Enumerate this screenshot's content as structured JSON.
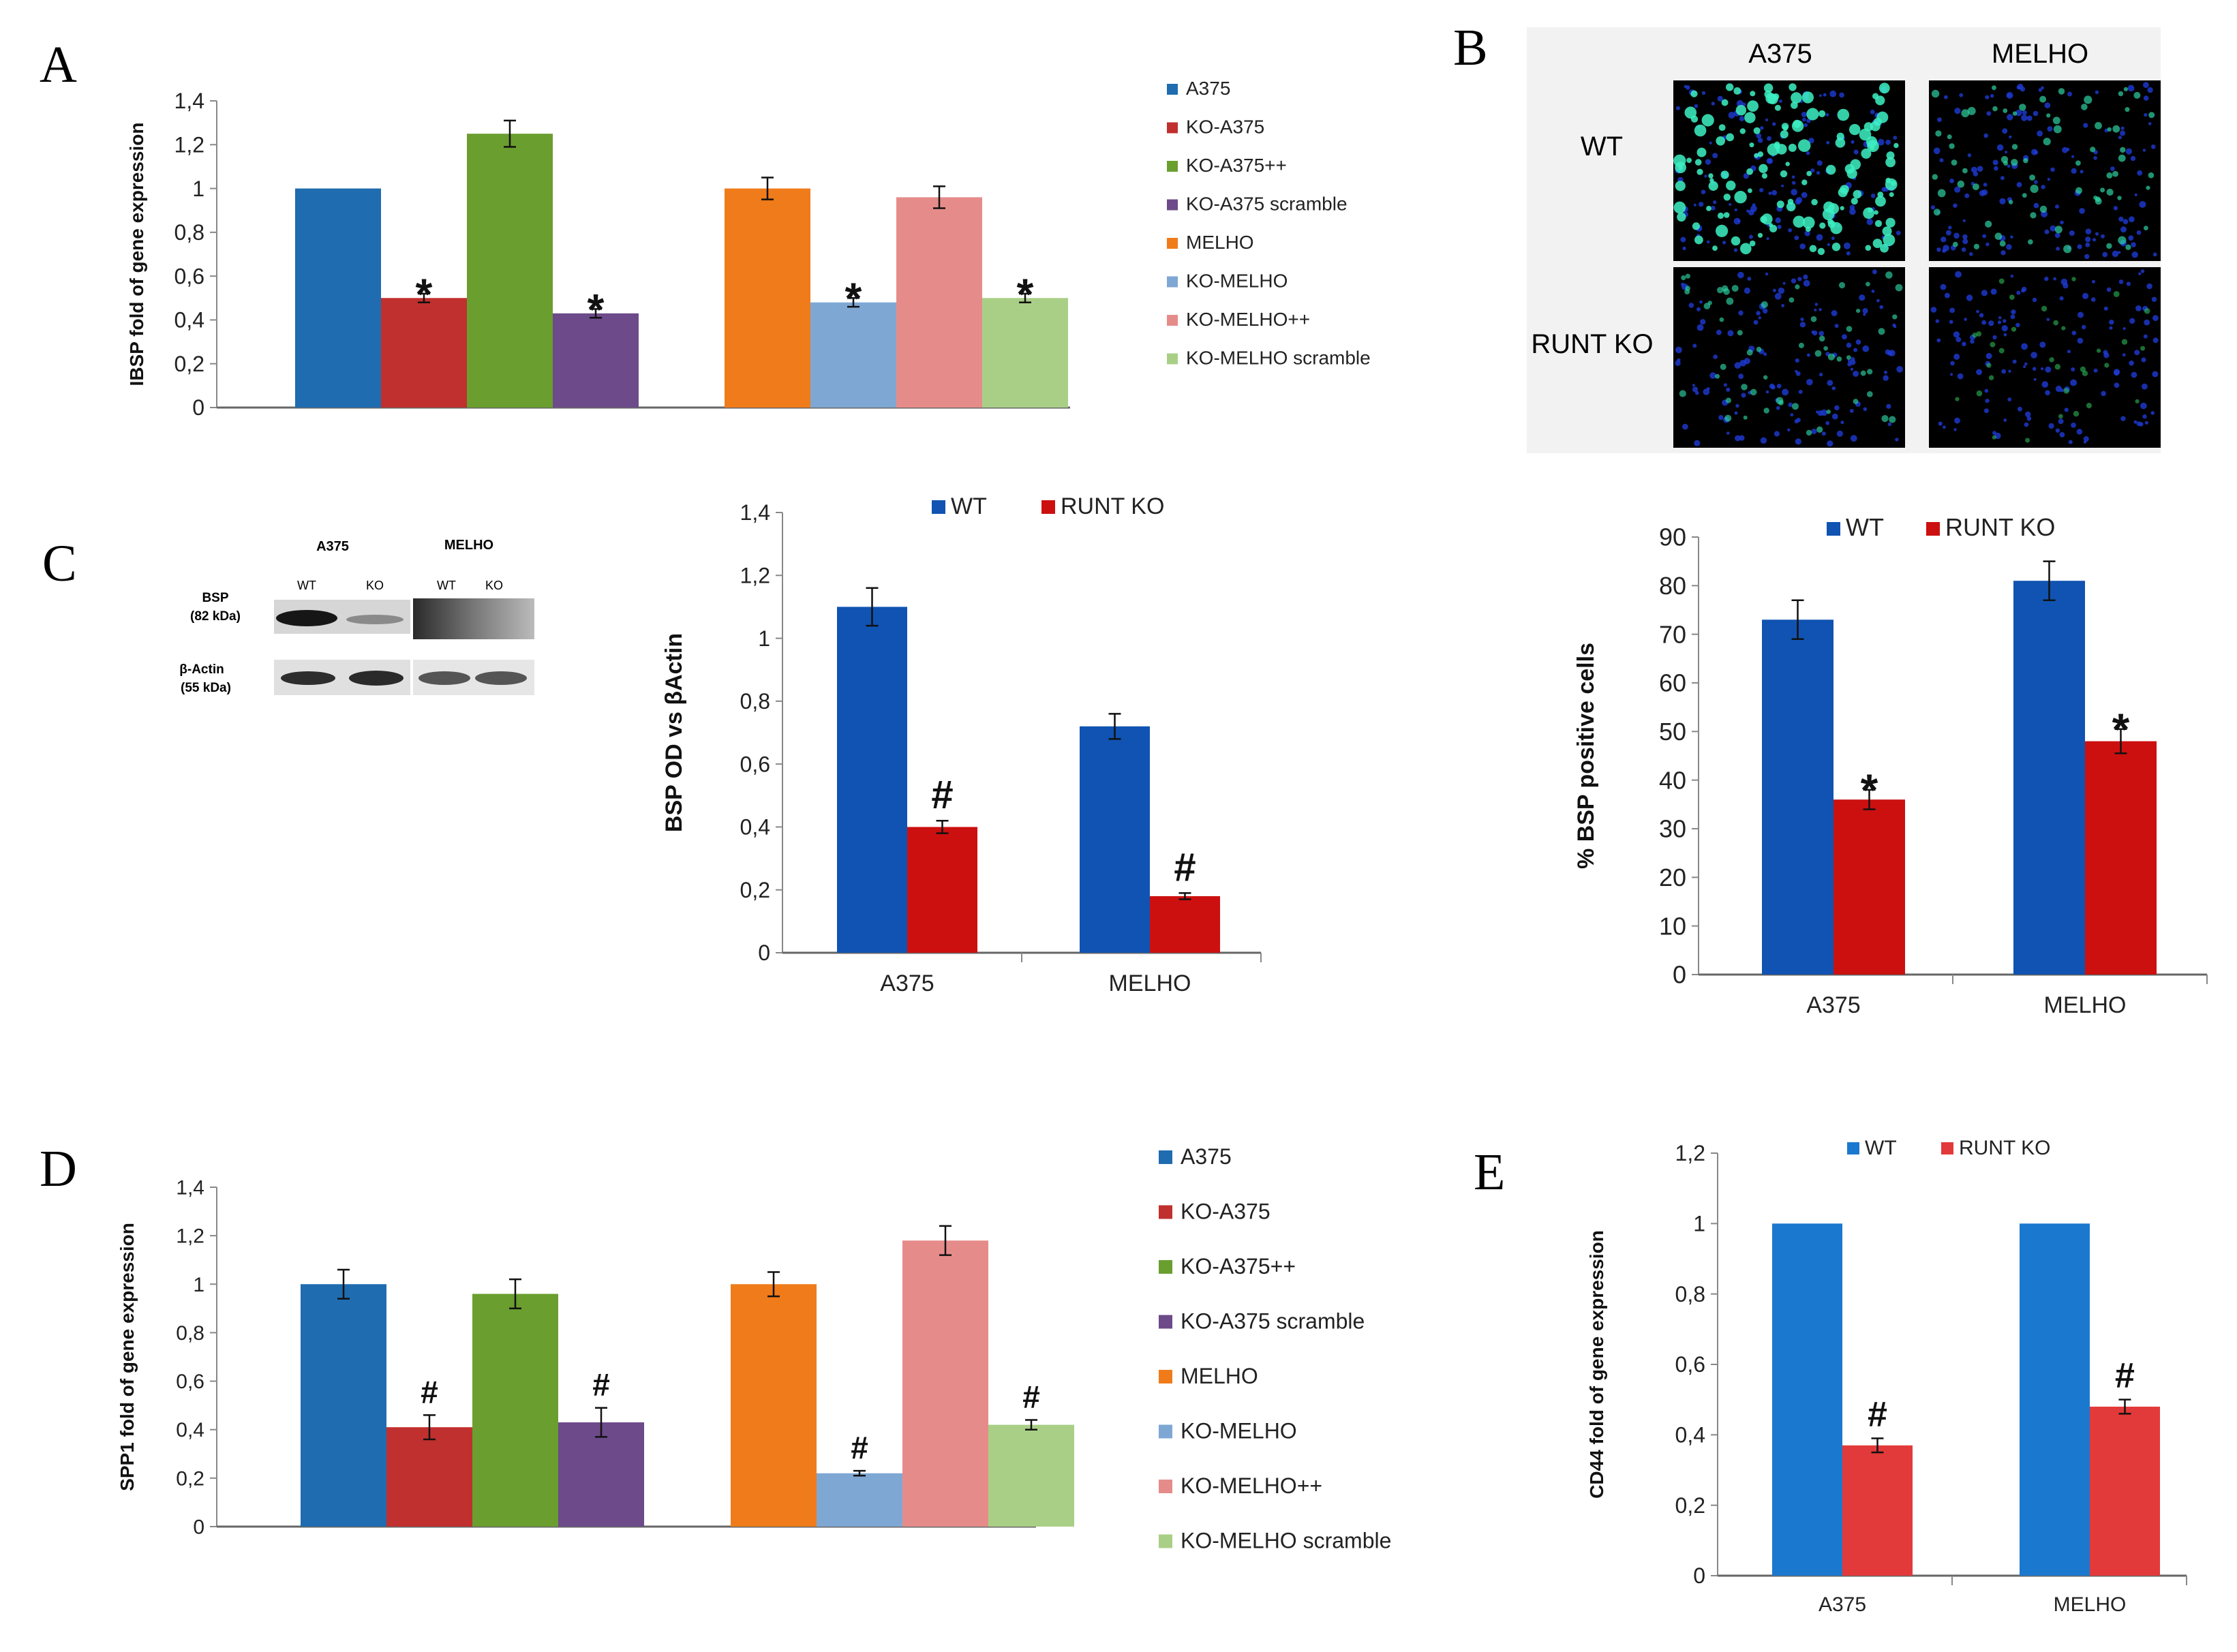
{
  "panels": {
    "A": "A",
    "B": "B",
    "C": "C",
    "D": "D",
    "E": "E"
  },
  "colors": {
    "A375": "#1f6cb0",
    "KO-A375": "#c0302e",
    "KO-A375++": "#6a9e2f",
    "KO-A375 scramble": "#6d4a8a",
    "MELHO": "#f07b1a",
    "KO-MELHO": "#7fa7d4",
    "KO-MELHO++": "#e58c8a",
    "KO-MELHO scramble": "#a9cf86",
    "WT_dark": "#1053b2",
    "KO_dark": "#cc1010",
    "WT_light": "#1b78cf",
    "KO_light": "#e23a3a"
  },
  "blot": {
    "group1": "A375",
    "group2": "MELHO",
    "lane_wt": "WT",
    "lane_ko": "KO",
    "row1_label": "BSP",
    "row1_sub": "(82 kDa)",
    "row2_label": "β-Actin",
    "row2_sub": "(55 kDa)"
  },
  "micro": {
    "col1": "A375",
    "col2": "MELHO",
    "row1": "WT",
    "row2": "RUNT KO",
    "intensity": [
      [
        0.9,
        0.45
      ],
      [
        0.35,
        0.2
      ]
    ]
  },
  "chart_data": [
    {
      "id": "A",
      "type": "bar",
      "ylabel": "IBSP fold of gene expression",
      "ylim": [
        0,
        1.4
      ],
      "yticks": [
        "0",
        "0,2",
        "0,4",
        "0,6",
        "0,8",
        "1",
        "1,2",
        "1,4"
      ],
      "groups": [
        {
          "series": [
            "A375",
            "KO-A375",
            "KO-A375++",
            "KO-A375 scramble"
          ],
          "values": [
            1,
            0.5,
            1.25,
            0.43
          ],
          "errors": [
            0,
            0.02,
            0.06,
            0.02
          ],
          "marks": [
            "",
            "*",
            "",
            "*"
          ]
        },
        {
          "series": [
            "MELHO",
            "KO-MELHO",
            "KO-MELHO++",
            "KO-MELHO scramble"
          ],
          "values": [
            1,
            0.48,
            0.96,
            0.5
          ],
          "errors": [
            0.05,
            0.02,
            0.05,
            0.02
          ],
          "marks": [
            "",
            "*",
            "",
            "*"
          ]
        }
      ],
      "legend": [
        "A375",
        "KO-A375",
        "KO-A375++",
        "KO-A375 scramble",
        "MELHO",
        "KO-MELHO",
        "KO-MELHO++",
        "KO-MELHO scramble"
      ]
    },
    {
      "id": "C",
      "type": "bar",
      "ylabel": "BSP OD vs βActin",
      "ylim": [
        0,
        1.4
      ],
      "yticks": [
        "0",
        "0,2",
        "0,4",
        "0,6",
        "0,8",
        "1",
        "1,2",
        "1,4"
      ],
      "categories": [
        "A375",
        "MELHO"
      ],
      "series": [
        {
          "name": "WT",
          "values": [
            1.1,
            0.72
          ],
          "errors": [
            0.06,
            0.04
          ],
          "marks": [
            "",
            ""
          ]
        },
        {
          "name": "RUNT KO",
          "values": [
            0.4,
            0.18
          ],
          "errors": [
            0.02,
            0.01
          ],
          "marks": [
            "#",
            "#"
          ]
        }
      ]
    },
    {
      "id": "B",
      "type": "bar",
      "ylabel": "% BSP positive cells",
      "ylim": [
        0,
        90
      ],
      "yticks": [
        "0",
        "10",
        "20",
        "30",
        "40",
        "50",
        "60",
        "70",
        "80",
        "90"
      ],
      "categories": [
        "A375",
        "MELHO"
      ],
      "series": [
        {
          "name": "WT",
          "values": [
            73,
            81
          ],
          "errors": [
            4,
            4
          ],
          "marks": [
            "",
            ""
          ]
        },
        {
          "name": "RUNT KO",
          "values": [
            36,
            48
          ],
          "errors": [
            2,
            2.5
          ],
          "marks": [
            "*",
            "*"
          ]
        }
      ]
    },
    {
      "id": "D",
      "type": "bar",
      "ylabel": "SPP1 fold of gene expression",
      "ylim": [
        0,
        1.4
      ],
      "yticks": [
        "0",
        "0,2",
        "0,4",
        "0,6",
        "0,8",
        "1",
        "1,2",
        "1,4"
      ],
      "groups": [
        {
          "series": [
            "A375",
            "KO-A375",
            "KO-A375++",
            "KO-A375 scramble"
          ],
          "values": [
            1,
            0.41,
            0.96,
            0.43
          ],
          "errors": [
            0.06,
            0.05,
            0.06,
            0.06
          ],
          "marks": [
            "",
            "#",
            "",
            "#"
          ]
        },
        {
          "series": [
            "MELHO",
            "KO-MELHO",
            "KO-MELHO++",
            "KO-MELHO scramble"
          ],
          "values": [
            1,
            0.22,
            1.18,
            0.42
          ],
          "errors": [
            0.05,
            0.01,
            0.06,
            0.02
          ],
          "marks": [
            "",
            "#",
            "",
            "#"
          ]
        }
      ],
      "legend": [
        "A375",
        "KO-A375",
        "KO-A375++",
        "KO-A375 scramble",
        "MELHO",
        "KO-MELHO",
        "KO-MELHO++",
        "KO-MELHO scramble"
      ]
    },
    {
      "id": "E",
      "type": "bar",
      "ylabel": "CD44 fold of gene expression",
      "ylim": [
        0,
        1.2
      ],
      "yticks": [
        "0",
        "0,2",
        "0,4",
        "0,6",
        "0,8",
        "1",
        "1,2"
      ],
      "categories": [
        "A375",
        "MELHO"
      ],
      "series": [
        {
          "name": "WT",
          "values": [
            1,
            1
          ],
          "errors": [
            0,
            0
          ],
          "marks": [
            "",
            ""
          ]
        },
        {
          "name": "RUNT KO",
          "values": [
            0.37,
            0.48
          ],
          "errors": [
            0.02,
            0.02
          ],
          "marks": [
            "#",
            "#"
          ]
        }
      ]
    }
  ]
}
